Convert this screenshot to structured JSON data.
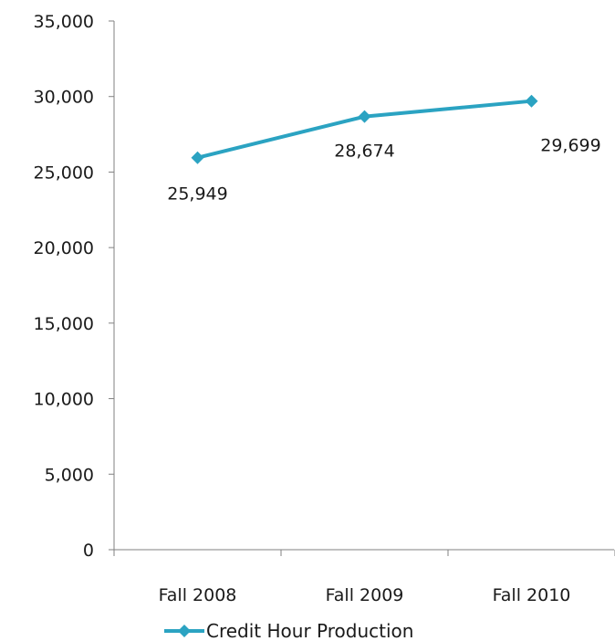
{
  "chart_data": {
    "type": "line",
    "categories": [
      "Fall 2008",
      "Fall 2009",
      "Fall 2010"
    ],
    "series": [
      {
        "name": "Credit Hour Production",
        "values": [
          25949,
          28674,
          29699
        ],
        "data_labels": [
          "25,949",
          "28,674",
          "29,699"
        ]
      }
    ],
    "yticks": [
      0,
      5000,
      10000,
      15000,
      20000,
      25000,
      30000,
      35000
    ],
    "ytick_labels": [
      "0",
      "5,000",
      "10,000",
      "15,000",
      "20,000",
      "25,000",
      "30,000",
      "35,000"
    ],
    "ylim": [
      0,
      35000
    ],
    "grid": false,
    "legend": "bottom",
    "colors": {
      "series": "#2BA3C2",
      "axis": "#808080",
      "text": "#1a1a1a"
    }
  }
}
